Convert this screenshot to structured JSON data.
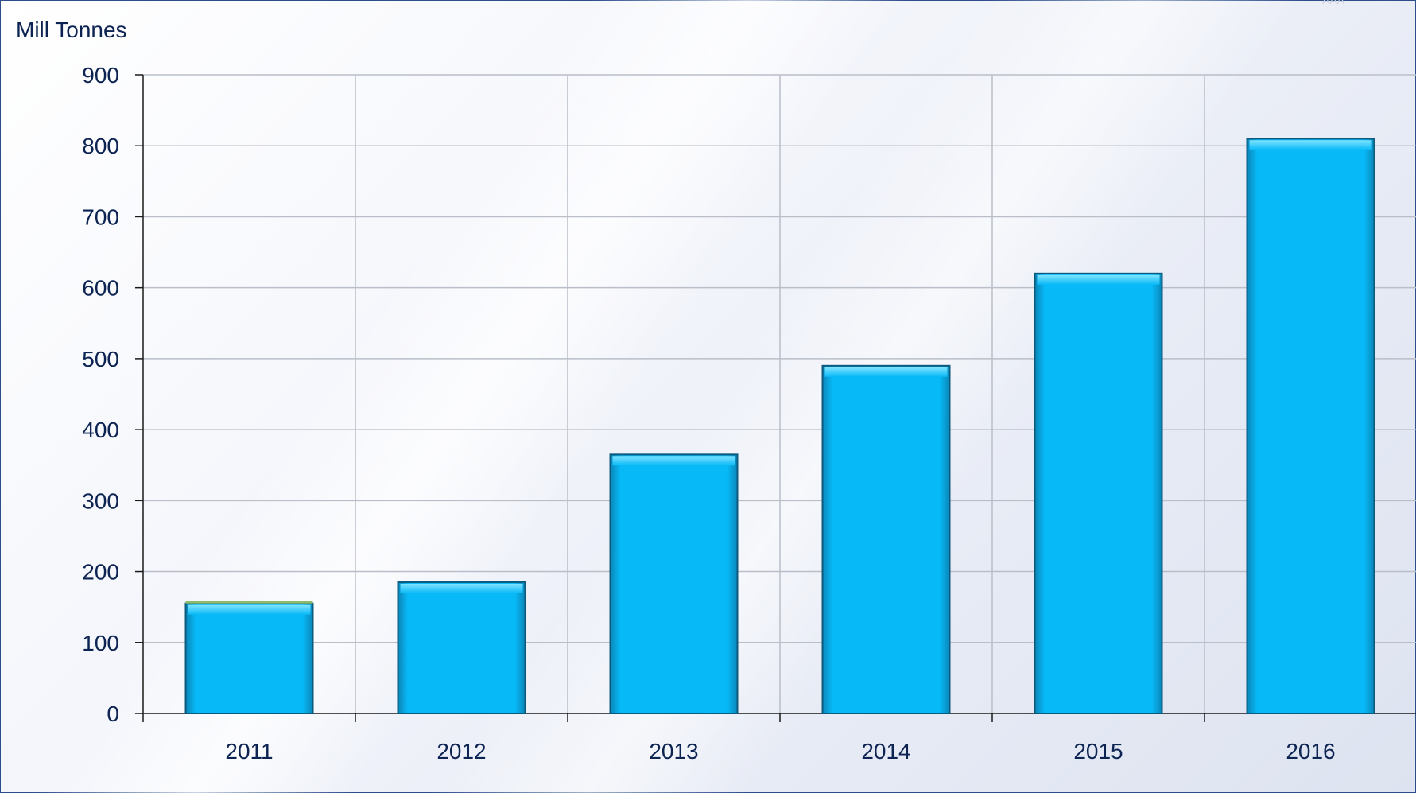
{
  "chart_data": {
    "type": "bar",
    "title": "",
    "xlabel": "",
    "ylabel": "Mill Tonnes",
    "categories": [
      "2011",
      "2012",
      "2013",
      "2014",
      "2015",
      "2016"
    ],
    "values": [
      155,
      185,
      365,
      490,
      620,
      810
    ],
    "ylim": [
      0,
      900
    ],
    "yticks": [
      0,
      100,
      200,
      300,
      400,
      500,
      600,
      700,
      800,
      900
    ],
    "grid": true,
    "legend": "none",
    "bar_color": "#08b9f7",
    "bar_edge_color": "#0c5a7e",
    "first_bar_top_accent": "#8fbc6a"
  },
  "page": {
    "corner_text": "ААА"
  }
}
